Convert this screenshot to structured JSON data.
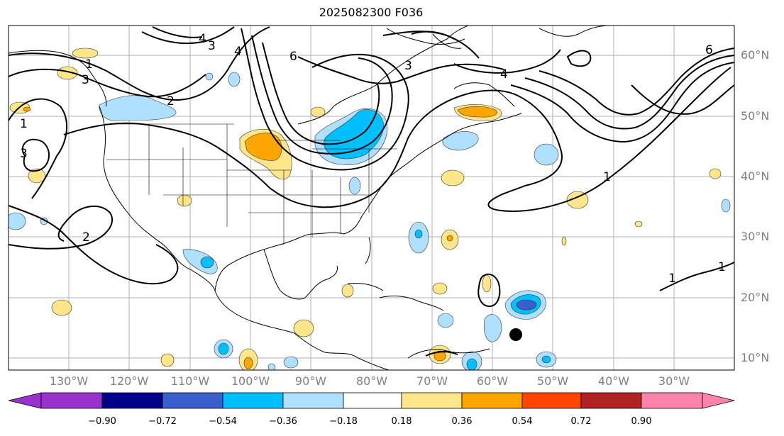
{
  "title": "2025082300 F036",
  "latitude_labels": [
    "60°N",
    "50°N",
    "40°N",
    "30°N",
    "20°N",
    "10°N"
  ],
  "longitude_labels": [
    "130°W",
    "120°W",
    "110°W",
    "100°W",
    "90°W",
    "80°W",
    "70°W",
    "60°W",
    "50°W",
    "40°W",
    "30°W"
  ],
  "colorbar": {
    "tick_labels": [
      "−0.90",
      "−0.72",
      "−0.54",
      "−0.36",
      "−0.18",
      "0.18",
      "0.36",
      "0.54",
      "0.72",
      "0.90"
    ],
    "colors": [
      "#9932cc",
      "#00008b",
      "#3a5fcd",
      "#00bfff",
      "#b0e0ff",
      "#ffffff",
      "#ffe68a",
      "#ffa500",
      "#ff4500",
      "#b22222",
      "#ff82ab"
    ]
  },
  "contour_labels": [
    "1",
    "2",
    "3",
    "4",
    "6"
  ],
  "colors": {
    "contour": "#000000",
    "grid": "#b0b0b0",
    "coast": "#000000",
    "label_gray": "#808080"
  }
}
